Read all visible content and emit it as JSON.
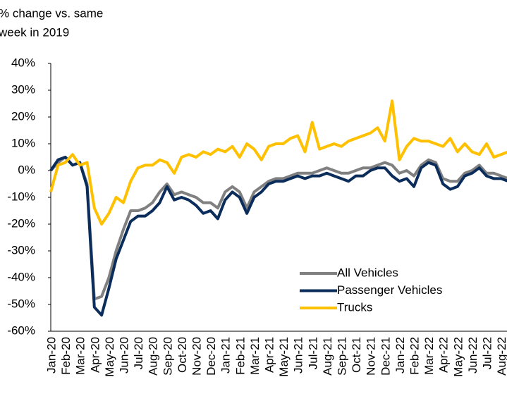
{
  "chart_data": {
    "type": "line",
    "title": [
      "% change vs. same",
      "week in 2019"
    ],
    "categories": [
      "Jan-20",
      null,
      "Feb-20",
      null,
      "Mar-20",
      null,
      "Apr-20",
      null,
      "May-20",
      null,
      "Jun-20",
      null,
      "Jul-20",
      null,
      "Aug-20",
      null,
      "Sep-20",
      null,
      "Oct-20",
      null,
      "Nov-20",
      null,
      "Dec-20",
      null,
      "Jan-21",
      null,
      "Feb-21",
      null,
      "Mar-21",
      null,
      "Apr-21",
      null,
      "May-21",
      null,
      "Jun-21",
      null,
      "Jul-21",
      null,
      "Aug-21",
      null,
      "Sep-21",
      null,
      "Oct-21",
      null,
      "Nov-21",
      null,
      "Dec-21",
      null,
      "Jan-22",
      null,
      "Feb-22",
      null,
      "Mar-22",
      null,
      "Apr-22",
      null,
      "May-22",
      null,
      "Jun-22",
      null,
      "Jul-22",
      null,
      "Aug-22",
      null
    ],
    "series": [
      {
        "name": "All Vehicles",
        "color": "#808080",
        "values": [
          0,
          3,
          5,
          2,
          3,
          -5,
          -48,
          -47,
          -40,
          -30,
          -22,
          -15,
          -15,
          -14,
          -12,
          -8,
          -5,
          -9,
          -8,
          -9,
          -10,
          -12,
          -12,
          -14,
          -8,
          -6,
          -8,
          -14,
          -8,
          -6,
          -4,
          -3,
          -3,
          -2,
          -1,
          -1,
          -1,
          0,
          1,
          0,
          -1,
          -1,
          0,
          1,
          1,
          2,
          3,
          2,
          -1,
          0,
          -2,
          2,
          4,
          3,
          -3,
          -4,
          -4,
          -1,
          0,
          2,
          -1,
          -1,
          -2,
          -3
        ]
      },
      {
        "name": "Passenger Vehicles",
        "color": "#0b2d5b",
        "values": [
          0,
          4,
          5,
          2,
          3,
          -6,
          -51,
          -54,
          -44,
          -33,
          -26,
          -19,
          -17,
          -17,
          -15,
          -12,
          -6,
          -11,
          -10,
          -11,
          -13,
          -16,
          -15,
          -18,
          -11,
          -8,
          -10,
          -16,
          -10,
          -8,
          -5,
          -4,
          -4,
          -3,
          -2,
          -3,
          -2,
          -2,
          -1,
          -2,
          -3,
          -4,
          -2,
          -2,
          0,
          1,
          1,
          -2,
          -4,
          -3,
          -6,
          1,
          3,
          2,
          -5,
          -7,
          -6,
          -2,
          -1,
          1,
          -2,
          -3,
          -3,
          -4
        ]
      },
      {
        "name": "Trucks",
        "color": "#ffc000",
        "values": [
          -8,
          2,
          3,
          6,
          2,
          3,
          -14,
          -20,
          -16,
          -10,
          -12,
          -4,
          1,
          2,
          2,
          4,
          3,
          -1,
          5,
          6,
          5,
          7,
          6,
          8,
          7,
          9,
          5,
          10,
          8,
          4,
          9,
          10,
          10,
          12,
          13,
          7,
          18,
          8,
          9,
          10,
          9,
          11,
          12,
          13,
          14,
          16,
          11,
          26,
          4,
          9,
          12,
          11,
          11,
          10,
          9,
          12,
          7,
          10,
          7,
          6,
          10,
          5,
          6,
          7
        ]
      }
    ],
    "ylim": [
      -60,
      40
    ],
    "yticks": [
      {
        "value": -60,
        "label": "-60%"
      },
      {
        "value": -50,
        "label": "-50%"
      },
      {
        "value": -40,
        "label": "-40%"
      },
      {
        "value": -30,
        "label": "-30%"
      },
      {
        "value": -20,
        "label": "-20%"
      },
      {
        "value": -10,
        "label": "-10%"
      },
      {
        "value": 0,
        "label": "0%"
      },
      {
        "value": 10,
        "label": "10%"
      },
      {
        "value": 20,
        "label": "20%"
      },
      {
        "value": 30,
        "label": "30%"
      },
      {
        "value": 40,
        "label": "40%"
      }
    ],
    "legend": "lower right"
  }
}
